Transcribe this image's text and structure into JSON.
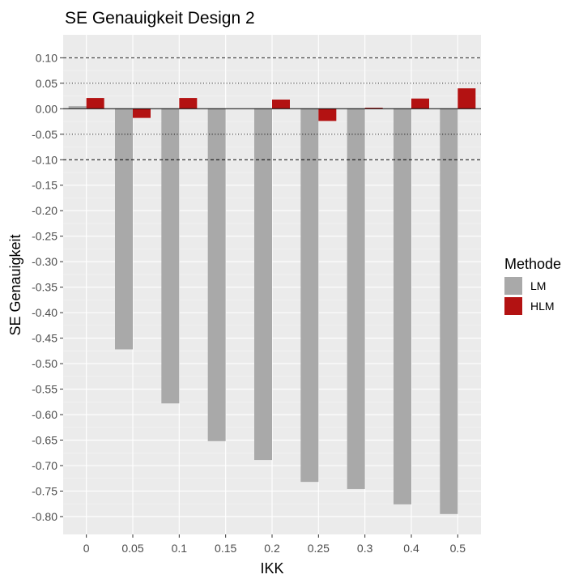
{
  "chart_data": {
    "type": "bar",
    "title": "SE Genauigkeit Design 2",
    "xlabel": "IKK",
    "ylabel": "SE Genauigkeit",
    "categories": [
      "0",
      "0.05",
      "0.1",
      "0.15",
      "0.2",
      "0.25",
      "0.3",
      "0.4",
      "0.5"
    ],
    "series": [
      {
        "name": "LM",
        "color": "#a9a9a9",
        "values": [
          0.005,
          -0.472,
          -0.578,
          -0.652,
          -0.689,
          -0.732,
          -0.746,
          -0.776,
          -0.795
        ]
      },
      {
        "name": "HLM",
        "color": "#b31212",
        "values": [
          0.021,
          -0.018,
          0.021,
          null,
          0.018,
          -0.024,
          0.002,
          0.02,
          0.04
        ]
      }
    ],
    "ylim": [
      -0.835,
      0.145
    ],
    "yticks": [
      0.1,
      0.05,
      0.0,
      -0.05,
      -0.1,
      -0.15,
      -0.2,
      -0.25,
      -0.3,
      -0.35,
      -0.4,
      -0.45,
      -0.5,
      -0.55,
      -0.6,
      -0.65,
      -0.7,
      -0.75,
      -0.8
    ],
    "ytick_labels": [
      "0.10",
      "0.05",
      "0.00",
      "-0.05",
      "-0.10",
      "-0.15",
      "-0.20",
      "-0.25",
      "-0.30",
      "-0.35",
      "-0.40",
      "-0.45",
      "-0.50",
      "-0.55",
      "-0.60",
      "-0.65",
      "-0.70",
      "-0.75",
      "-0.80"
    ],
    "reference_lines": [
      {
        "y": 0.1,
        "style": "dashed"
      },
      {
        "y": 0.05,
        "style": "dotted"
      },
      {
        "y": 0.0,
        "style": "solid"
      },
      {
        "y": -0.05,
        "style": "dotted"
      },
      {
        "y": -0.1,
        "style": "dashed"
      }
    ],
    "grid": true,
    "panel_color": "#ebebeb",
    "legend": {
      "title": "Methode",
      "position": "right"
    }
  }
}
